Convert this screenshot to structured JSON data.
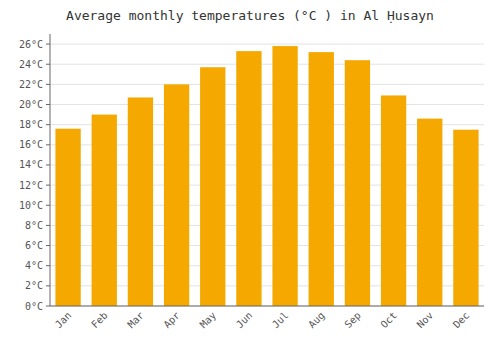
{
  "chart_data": {
    "type": "bar",
    "title": "Average monthly temperatures (°C ) in Al Ḥusayn",
    "categories": [
      "Jan",
      "Feb",
      "Mar",
      "Apr",
      "May",
      "Jun",
      "Jul",
      "Aug",
      "Sep",
      "Oct",
      "Nov",
      "Dec"
    ],
    "values": [
      17.6,
      19.0,
      20.7,
      22.0,
      23.7,
      25.3,
      25.8,
      25.2,
      24.4,
      20.9,
      18.6,
      17.5
    ],
    "color": "#F5A800",
    "ylim": [
      0,
      27
    ],
    "yticks": [
      {
        "value": 0,
        "label": "0°C"
      },
      {
        "value": 2,
        "label": "2°C"
      },
      {
        "value": 4,
        "label": "4°C"
      },
      {
        "value": 6,
        "label": "6°C"
      },
      {
        "value": 8,
        "label": "8°C"
      },
      {
        "value": 10,
        "label": "10°C"
      },
      {
        "value": 12,
        "label": "12°C"
      },
      {
        "value": 14,
        "label": "14°C"
      },
      {
        "value": 16,
        "label": "16°C"
      },
      {
        "value": 18,
        "label": "18°C"
      },
      {
        "value": 20,
        "label": "20°C"
      },
      {
        "value": 22,
        "label": "22°C"
      },
      {
        "value": 24,
        "label": "24°C"
      },
      {
        "value": 26,
        "label": "26°C"
      }
    ],
    "grid": true
  }
}
